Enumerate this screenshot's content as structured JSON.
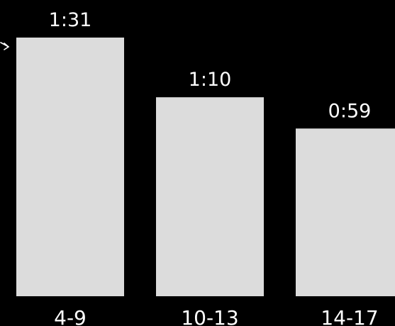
{
  "chart_data": {
    "type": "bar",
    "categories": [
      "4-9",
      "10-13",
      "14-17"
    ],
    "values": [
      91,
      70,
      59
    ],
    "value_labels": [
      "1:31",
      "1:10",
      "0:59"
    ],
    "value_unit": "minutes",
    "ylim": [
      0,
      91
    ],
    "grid": false,
    "legend": "none",
    "colors": {
      "background": "#000000",
      "bar": "#dcdcdc",
      "text": "#ffffff"
    }
  }
}
